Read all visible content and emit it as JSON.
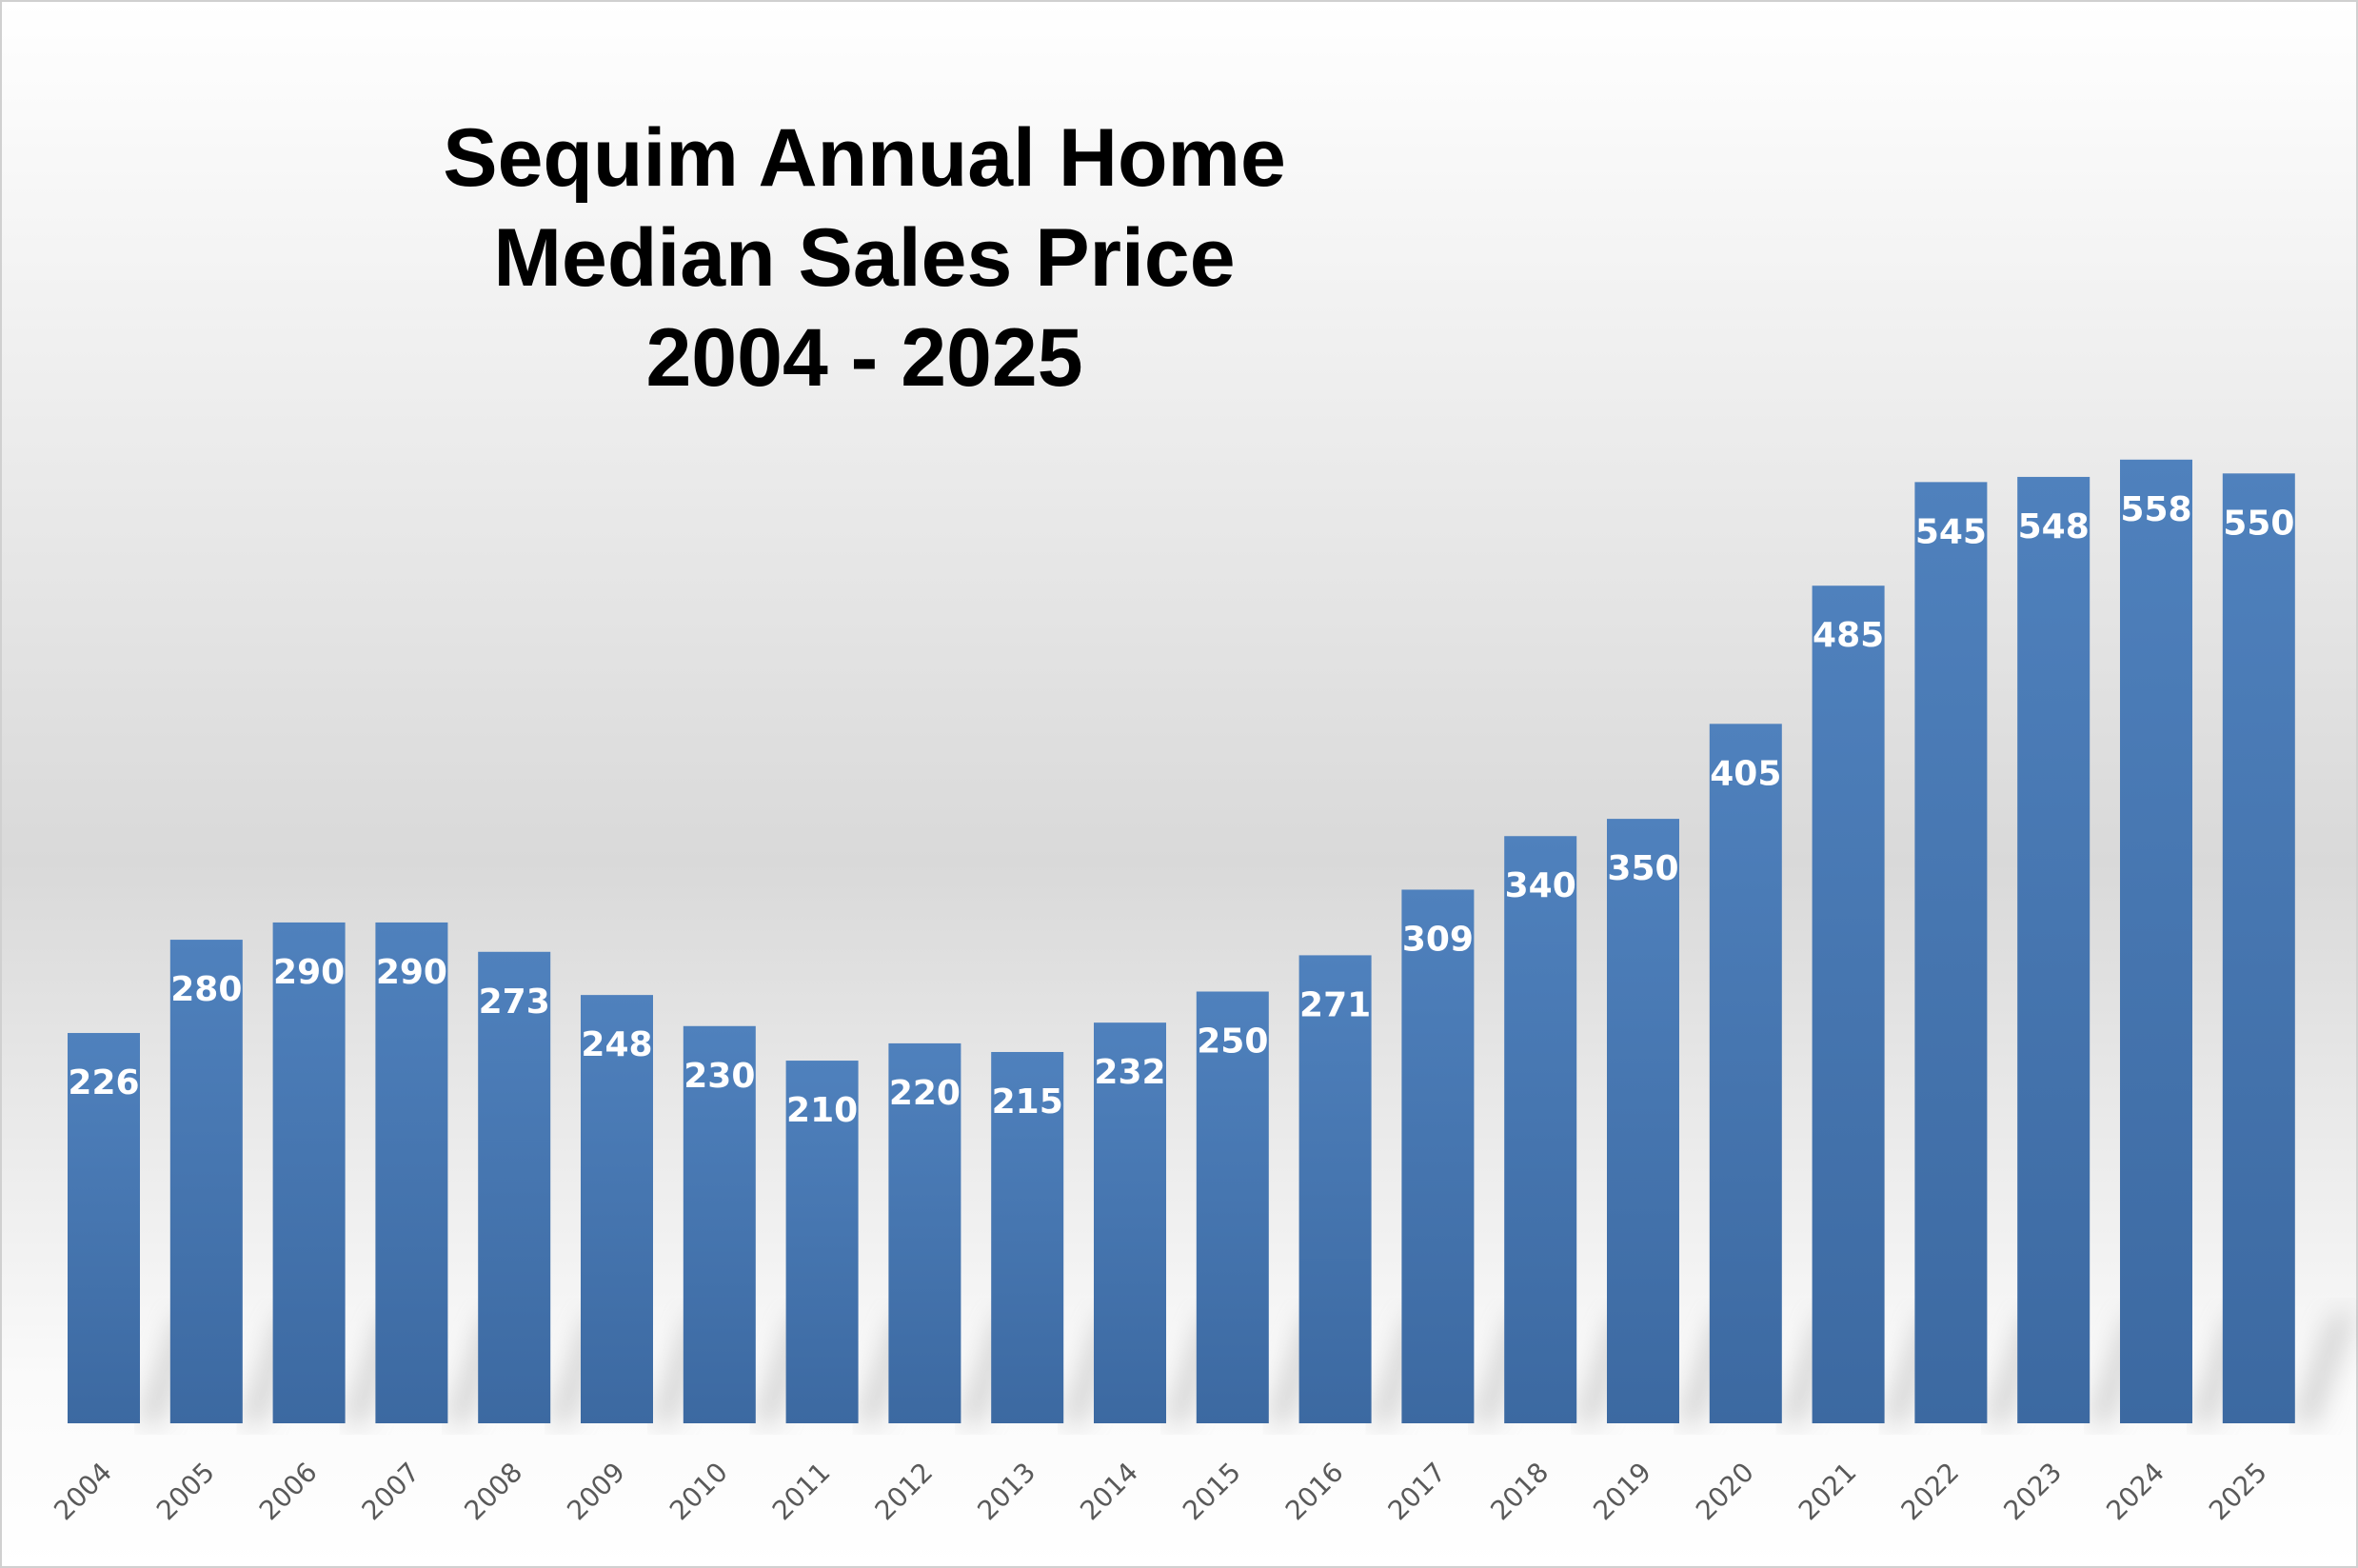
{
  "chart_data": {
    "type": "bar",
    "title": [
      "Sequim Annual Home",
      "Median Sales Price",
      "2004 - 2025"
    ],
    "xlabel": "",
    "ylabel": "",
    "ylim": [
      0,
      660
    ],
    "grid": false,
    "legend": "none",
    "categories": [
      "2004",
      "2005",
      "2006",
      "2007",
      "2008",
      "2009",
      "2010",
      "2011",
      "2012",
      "2013",
      "2014",
      "2015",
      "2016",
      "2017",
      "2018",
      "2019",
      "2020",
      "2021",
      "2022",
      "2023",
      "2024",
      "2025"
    ],
    "values": [
      226,
      280,
      290,
      290,
      273,
      248,
      230,
      210,
      220,
      215,
      232,
      250,
      271,
      309,
      340,
      350,
      405,
      485,
      545,
      548,
      558,
      550
    ],
    "data_labels": [
      "226",
      "280",
      "290",
      "290",
      "273",
      "248",
      "230",
      "210",
      "220",
      "215",
      "232",
      "250",
      "271",
      "309",
      "340",
      "350",
      "405",
      "485",
      "545",
      "548",
      "558",
      "550"
    ],
    "bar_color": "#4a7ab7"
  }
}
